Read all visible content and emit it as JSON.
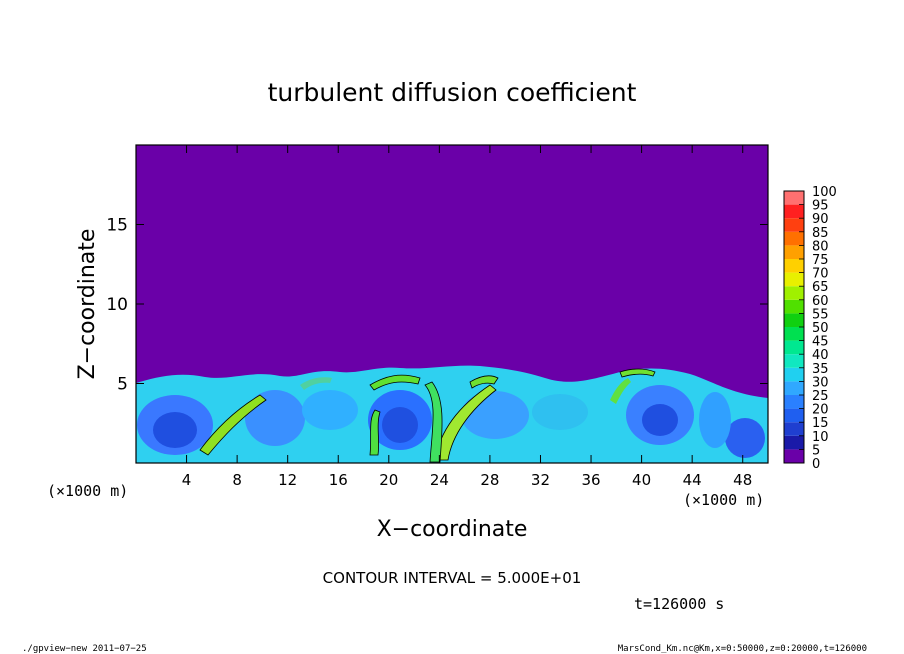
{
  "chart_data": {
    "type": "heatmap",
    "title": "turbulent diffusion coefficient",
    "xlabel": "X−coordinate",
    "ylabel": "Z−coordinate",
    "x_unit": "(×1000 m)",
    "y_unit": "(×1000 m)",
    "xlim": [
      0,
      50
    ],
    "ylim": [
      0,
      20
    ],
    "x_ticks": [
      4,
      8,
      12,
      16,
      20,
      24,
      28,
      32,
      36,
      40,
      44,
      48
    ],
    "y_ticks": [
      5,
      10,
      15
    ],
    "colorbar": {
      "levels": [
        0,
        5,
        10,
        15,
        20,
        25,
        30,
        35,
        40,
        45,
        50,
        55,
        60,
        65,
        70,
        75,
        80,
        85,
        90,
        95,
        100
      ],
      "colors": [
        "#6a00a8",
        "#1a1aa8",
        "#1f3fd0",
        "#1f5ff0",
        "#2a80ff",
        "#30a8ff",
        "#20d0f0",
        "#10e8c0",
        "#00e890",
        "#00e050",
        "#10d010",
        "#50e000",
        "#a0f000",
        "#e8f000",
        "#ffd000",
        "#ffa000",
        "#ff7000",
        "#ff4010",
        "#ff2020",
        "#ff7070"
      ]
    },
    "background_value": 0,
    "boundary_layer_top": 5.5,
    "contour_interval_text": "CONTOUR INTERVAL = 5.000E+01",
    "time_text": "t=126000 s"
  },
  "footer": {
    "left": "./gpview−new  2011−07−25",
    "right": "MarsCond_Km.nc@Km,x=0:50000,z=0:20000,t=126000"
  }
}
